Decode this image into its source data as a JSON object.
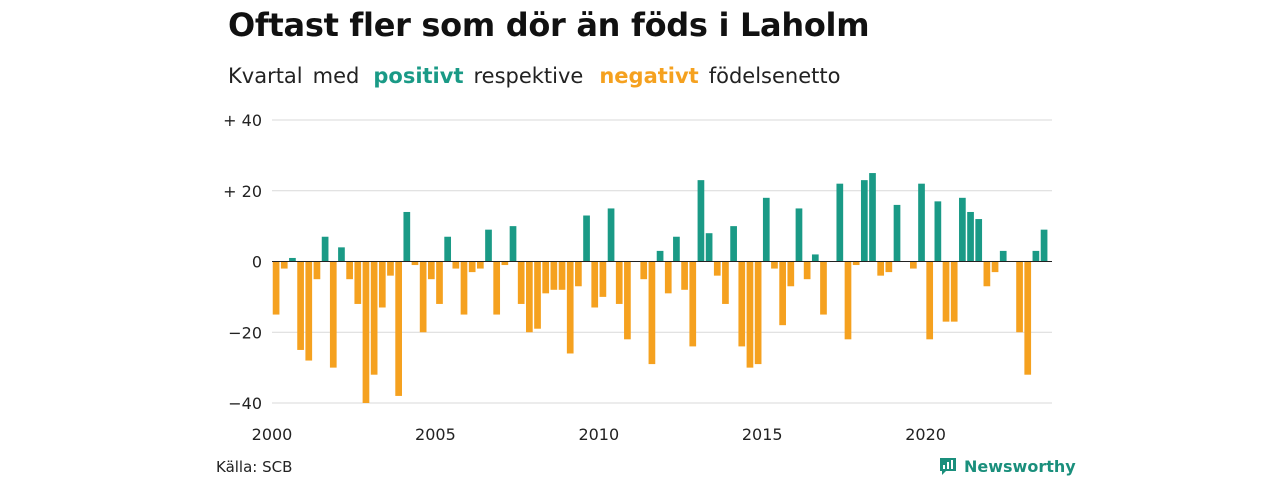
{
  "title": "Oftast fler som dör än föds i Laholm",
  "subtitle": {
    "part1": "Kvartal",
    "part2": "med",
    "positive": "positivt",
    "part3": "respektive",
    "negative": "negativt",
    "part4": "födelsenetto"
  },
  "source": "Källa: SCB",
  "brand": "Newsworthy",
  "colors": {
    "positive": "#1a9a86",
    "negative": "#f5a11f",
    "grid": "#d9d9d9"
  },
  "chart_data": {
    "type": "bar",
    "title": "Oftast fler som dör än föds i Laholm",
    "subtitle": "Kvartal med positivt respektive negativt födelsenetto",
    "x_start": 2000,
    "x_ticks": [
      2000,
      2005,
      2010,
      2015,
      2020
    ],
    "y_ticks": [
      40,
      20,
      0,
      -20,
      -40
    ],
    "y_tick_labels": [
      "+ 40",
      "+ 20",
      "0",
      "−20",
      "−40"
    ],
    "ylim": [
      -40,
      40
    ],
    "grid": true,
    "series": [
      {
        "values": [
          -15,
          -2,
          1,
          -25,
          -28,
          -5,
          7,
          -30,
          4,
          -5,
          -12,
          -40,
          -32,
          -13,
          -4,
          -38,
          14,
          -1,
          -20,
          -5,
          -12,
          7,
          -2,
          -15,
          -3,
          -2,
          9,
          -15,
          -1,
          10,
          -12,
          -20,
          -19,
          -9,
          -8,
          -8,
          -26,
          -7,
          13,
          -13,
          -10,
          15,
          -12,
          -22,
          0,
          -5,
          -29,
          3,
          -9,
          7,
          -8,
          -24,
          23,
          8,
          -4,
          -12,
          10,
          -24,
          -30,
          -29,
          18,
          -2,
          -18,
          -7,
          15,
          -5,
          2,
          -15,
          0,
          22,
          -22,
          -1,
          23,
          25,
          -4,
          -3,
          16,
          0,
          -2,
          22,
          -22,
          17,
          -17,
          -17,
          18,
          14,
          12,
          -7,
          -3,
          3,
          0,
          -20,
          -32,
          3,
          9
        ]
      }
    ]
  }
}
